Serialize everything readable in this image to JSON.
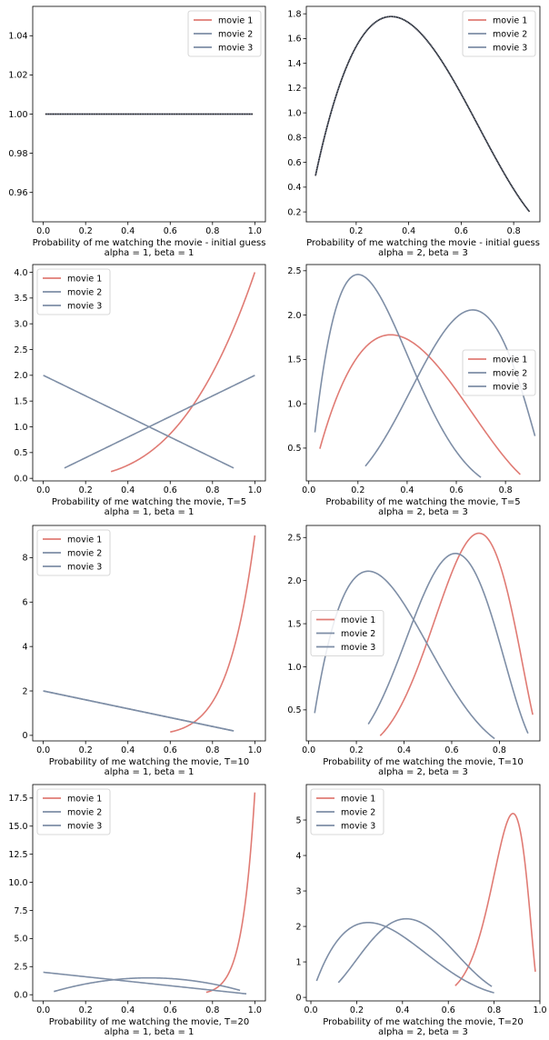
{
  "colors": {
    "movie1": "#e07b74",
    "movie2": "#7e8ea6",
    "movie3": "#7e8ea6",
    "axes": "#000000",
    "point": "#1a1a1a"
  },
  "chart_data": [
    {
      "type": "line",
      "title": "",
      "xlabel": "Probability of me watching the movie - initial guess",
      "sublabel": "alpha = 1, beta = 1",
      "legend_position": "upper-right",
      "xlim": [
        -0.05,
        1.05
      ],
      "ylim": [
        0.945,
        1.055
      ],
      "xticks": [
        0.0,
        0.2,
        0.4,
        0.6,
        0.8,
        1.0
      ],
      "xtick_labels": [
        "0.0",
        "0.2",
        "0.4",
        "0.6",
        "0.8",
        "1.0"
      ],
      "yticks": [
        0.96,
        0.98,
        1.0,
        1.02,
        1.04
      ],
      "ytick_labels": [
        "0.96",
        "0.98",
        "1.00",
        "1.02",
        "1.04"
      ],
      "series": [
        {
          "name": "movie 1",
          "dist": {
            "a": 1,
            "b": 1
          },
          "xrange": [
            0.01,
            0.99
          ]
        },
        {
          "name": "movie 2",
          "dist": {
            "a": 1,
            "b": 1
          },
          "xrange": [
            0.01,
            0.99
          ]
        },
        {
          "name": "movie 3",
          "dist": {
            "a": 1,
            "b": 1
          },
          "xrange": [
            0.01,
            0.99
          ]
        }
      ],
      "overlay": {
        "dist": {
          "a": 1,
          "b": 1
        },
        "xrange": [
          0.01,
          0.99
        ]
      }
    },
    {
      "type": "line",
      "title": "",
      "xlabel": "Probability of me watching the movie - initial guess",
      "sublabel": "alpha = 2, beta = 3",
      "legend_position": "upper-right",
      "xlim": [
        0.01,
        0.9
      ],
      "ylim": [
        0.12,
        1.86
      ],
      "xticks": [
        0.2,
        0.4,
        0.6,
        0.8
      ],
      "xtick_labels": [
        "0.2",
        "0.4",
        "0.6",
        "0.8"
      ],
      "yticks": [
        0.2,
        0.4,
        0.6,
        0.8,
        1.0,
        1.2,
        1.4,
        1.6,
        1.8
      ],
      "ytick_labels": [
        "0.2",
        "0.4",
        "0.6",
        "0.8",
        "1.0",
        "1.2",
        "1.4",
        "1.6",
        "1.8"
      ],
      "series": [
        {
          "name": "movie 1",
          "dist": {
            "a": 2,
            "b": 3
          },
          "xrange": [
            0.045,
            0.86
          ]
        },
        {
          "name": "movie 2",
          "dist": {
            "a": 2,
            "b": 3
          },
          "xrange": [
            0.045,
            0.86
          ]
        },
        {
          "name": "movie 3",
          "dist": {
            "a": 2,
            "b": 3
          },
          "xrange": [
            0.045,
            0.86
          ]
        }
      ],
      "overlay": {
        "dist": {
          "a": 2,
          "b": 3
        },
        "xrange": [
          0.045,
          0.86
        ]
      }
    },
    {
      "type": "line",
      "title": "",
      "xlabel": "Probability of me watching the movie, T=5",
      "sublabel": "alpha = 1, beta = 1",
      "legend_position": "upper-left",
      "xlim": [
        -0.05,
        1.05
      ],
      "ylim": [
        -0.05,
        4.15
      ],
      "xticks": [
        0.0,
        0.2,
        0.4,
        0.6,
        0.8,
        1.0
      ],
      "xtick_labels": [
        "0.0",
        "0.2",
        "0.4",
        "0.6",
        "0.8",
        "1.0"
      ],
      "yticks": [
        0.0,
        0.5,
        1.0,
        1.5,
        2.0,
        2.5,
        3.0,
        3.5,
        4.0
      ],
      "ytick_labels": [
        "0.0",
        "0.5",
        "1.0",
        "1.5",
        "2.0",
        "2.5",
        "3.0",
        "3.5",
        "4.0"
      ],
      "series": [
        {
          "name": "movie 1",
          "dist": {
            "a": 4,
            "b": 1
          },
          "xrange": [
            0.32,
            1.0
          ]
        },
        {
          "name": "movie 2",
          "dist": {
            "a": 2,
            "b": 1
          },
          "xrange": [
            0.1,
            1.0
          ]
        },
        {
          "name": "movie 3",
          "dist": {
            "a": 1,
            "b": 2
          },
          "xrange": [
            0.0,
            0.9
          ]
        }
      ]
    },
    {
      "type": "line",
      "title": "",
      "xlabel": "Probability of me watching the movie, T=5",
      "sublabel": "alpha = 2, beta = 3",
      "legend_position": "center-right",
      "xlim": [
        -0.01,
        0.94
      ],
      "ylim": [
        0.13,
        2.57
      ],
      "xticks": [
        0.0,
        0.2,
        0.4,
        0.6,
        0.8
      ],
      "xtick_labels": [
        "0.0",
        "0.2",
        "0.4",
        "0.6",
        "0.8"
      ],
      "yticks": [
        0.5,
        1.0,
        1.5,
        2.0,
        2.5
      ],
      "ytick_labels": [
        "0.5",
        "1.0",
        "1.5",
        "2.0",
        "2.5"
      ],
      "series": [
        {
          "name": "movie 1",
          "dist": {
            "a": 2,
            "b": 3
          },
          "xrange": [
            0.045,
            0.86
          ]
        },
        {
          "name": "movie 2",
          "dist": {
            "a": 2,
            "b": 5
          },
          "xrange": [
            0.025,
            0.7
          ]
        },
        {
          "name": "movie 3",
          "dist": {
            "a": 4,
            "b": 2.5
          },
          "xrange": [
            0.23,
            0.92
          ]
        }
      ]
    },
    {
      "type": "line",
      "title": "",
      "xlabel": "Probability of me watching the movie, T=10",
      "sublabel": "alpha = 1, beta = 1",
      "legend_position": "upper-left",
      "xlim": [
        -0.05,
        1.05
      ],
      "ylim": [
        -0.25,
        9.45
      ],
      "xticks": [
        0.0,
        0.2,
        0.4,
        0.6,
        0.8,
        1.0
      ],
      "xtick_labels": [
        "0.0",
        "0.2",
        "0.4",
        "0.6",
        "0.8",
        "1.0"
      ],
      "yticks": [
        0,
        2,
        4,
        6,
        8
      ],
      "ytick_labels": [
        "0",
        "2",
        "4",
        "6",
        "8"
      ],
      "series": [
        {
          "name": "movie 1",
          "dist": {
            "a": 9,
            "b": 1
          },
          "xrange": [
            0.6,
            1.0
          ]
        },
        {
          "name": "movie 2",
          "dist": {
            "a": 1,
            "b": 2
          },
          "xrange": [
            0.0,
            0.9
          ]
        },
        {
          "name": "movie 3",
          "dist": {
            "a": 1,
            "b": 2
          },
          "xrange": [
            0.0,
            0.9
          ]
        }
      ]
    },
    {
      "type": "line",
      "title": "",
      "xlabel": "Probability of me watching the movie, T=10",
      "sublabel": "alpha = 2, beta = 3",
      "legend_position": "center-left",
      "xlim": [
        -0.01,
        0.97
      ],
      "ylim": [
        0.14,
        2.64
      ],
      "xticks": [
        0.0,
        0.2,
        0.4,
        0.6,
        0.8
      ],
      "xtick_labels": [
        "0.0",
        "0.2",
        "0.4",
        "0.6",
        "0.8"
      ],
      "yticks": [
        0.5,
        1.0,
        1.5,
        2.0,
        2.5
      ],
      "ytick_labels": [
        "0.5",
        "1.0",
        "1.5",
        "2.0",
        "2.5"
      ],
      "series": [
        {
          "name": "movie 1",
          "dist": {
            "a": 6,
            "b": 3
          },
          "xrange": [
            0.3,
            0.94
          ]
        },
        {
          "name": "movie 2",
          "dist": {
            "a": 2,
            "b": 4
          },
          "xrange": [
            0.025,
            0.78
          ]
        },
        {
          "name": "movie 3",
          "dist": {
            "a": 5,
            "b": 3.5
          },
          "xrange": [
            0.25,
            0.92
          ]
        }
      ]
    },
    {
      "type": "line",
      "title": "",
      "xlabel": "Probability of me watching the movie, T=20",
      "sublabel": "alpha = 1, beta = 1",
      "legend_position": "upper-left",
      "xlim": [
        -0.05,
        1.05
      ],
      "ylim": [
        -0.55,
        18.7
      ],
      "xticks": [
        0.0,
        0.2,
        0.4,
        0.6,
        0.8,
        1.0
      ],
      "xtick_labels": [
        "0.0",
        "0.2",
        "0.4",
        "0.6",
        "0.8",
        "1.0"
      ],
      "yticks": [
        0.0,
        2.5,
        5.0,
        7.5,
        10.0,
        12.5,
        15.0,
        17.5
      ],
      "ytick_labels": [
        "0.0",
        "2.5",
        "5.0",
        "7.5",
        "10.0",
        "12.5",
        "15.0",
        "17.5"
      ],
      "series": [
        {
          "name": "movie 1",
          "dist": {
            "a": 18,
            "b": 1
          },
          "xrange": [
            0.77,
            1.0
          ]
        },
        {
          "name": "movie 2",
          "dist": {
            "a": 2,
            "b": 2
          },
          "xrange": [
            0.05,
            0.93
          ]
        },
        {
          "name": "movie 3",
          "dist": {
            "a": 1,
            "b": 2
          },
          "xrange": [
            0.0,
            0.96
          ]
        }
      ]
    },
    {
      "type": "line",
      "title": "",
      "xlabel": "Probability of me watching the movie, T=20",
      "sublabel": "alpha = 2, beta = 3",
      "legend_position": "upper-left",
      "xlim": [
        -0.02,
        1.0
      ],
      "ylim": [
        -0.1,
        6.0
      ],
      "xticks": [
        0.0,
        0.2,
        0.4,
        0.6,
        0.8,
        1.0
      ],
      "xtick_labels": [
        "0.0",
        "0.2",
        "0.4",
        "0.6",
        "0.8",
        "1.0"
      ],
      "yticks": [
        0,
        1,
        2,
        3,
        4,
        5
      ],
      "ytick_labels": [
        "0",
        "1",
        "2",
        "3",
        "4",
        "5"
      ],
      "series": [
        {
          "name": "movie 1",
          "dist": {
            "a": 16,
            "b": 3
          },
          "xrange": [
            0.63,
            0.98
          ]
        },
        {
          "name": "movie 2",
          "dist": {
            "a": 2,
            "b": 4
          },
          "xrange": [
            0.025,
            0.8
          ]
        },
        {
          "name": "movie 3",
          "dist": {
            "a": 3.5,
            "b": 4.5
          },
          "xrange": [
            0.12,
            0.79
          ]
        }
      ]
    }
  ]
}
